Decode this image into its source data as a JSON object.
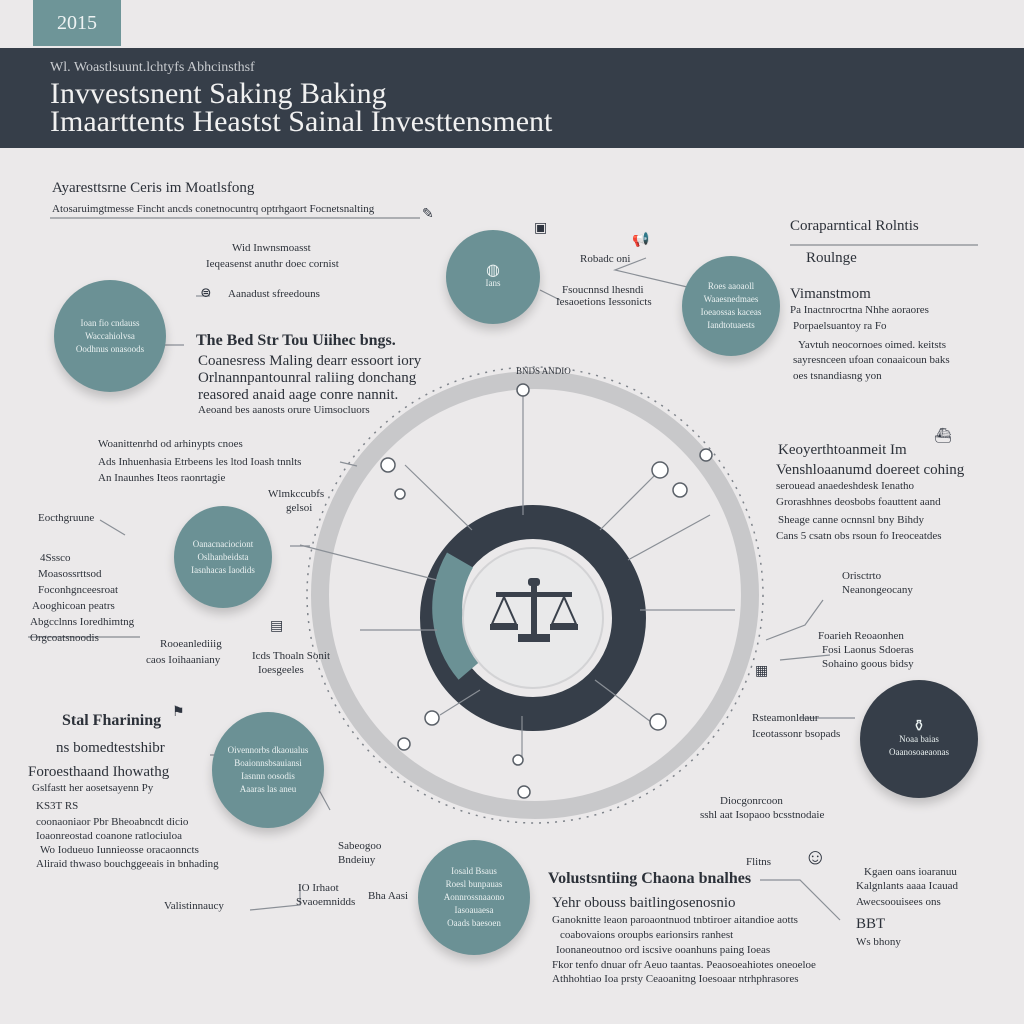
{
  "header": {
    "year": "2015",
    "supertitle": "Wl. Woastlsuunt.lchtyfs Abhcinsthsf",
    "title_line1": "Invvestsnent Saking Baking",
    "title_line2": "Imaarttents Heastst Sainal Investtensment"
  },
  "top_left": {
    "heading": "Ayaresttsrne Ceris im Moatlsfong",
    "subtitle": "Atosaruimgtmesse Fincht ancds conetnocuntrq optrhgaort Focnetsnalting"
  },
  "labels": {
    "mid_top_a": "Wid Inwnsmoasst",
    "mid_top_b": "Ieqeasenst anuthr doec cornist",
    "left_bub_label": "Aanadust sfreedouns",
    "best_heading": "The Bed Str Tou Uiihec bngs.",
    "best_1": "Coanesress Maling dearr essoort iory",
    "best_2": "Orlnannpantounral raliing donchang",
    "best_3": "reasored anaid aage conre nannit.",
    "best_4": "Aeoand bes aanosts orure Uimsocluors",
    "top_bub2_label": "Robadc oni",
    "top_bub2_sub_a": "Fsoucnnsd lhesndi",
    "top_bub2_sub_b": "Iesaoetions Iessonicts",
    "ring_top": "BNDS ANDIO",
    "left_mid_1": "Woanittenrhd od arhinypts cnoes",
    "left_mid_2": "Ads Inhuenhasia Etrbeens les ltod Ioash tnnlts",
    "left_mid_3": "An Inaunhes Iteos raonrtagie",
    "left_sm_a": "Wlmkccubfs",
    "left_sm_b": "gelsoi",
    "left_head3": "Eocthgruune",
    "left_3_1": "4Sssco",
    "left_3_2": "Moasossrttsod",
    "left_3_3": "Foconhgnceesroat",
    "left_3_4": "Aooghicoan peatrs",
    "left_3_5": "Abgcclnns Ioredhimtng",
    "left_3_6": "Orgcoatsnoodis",
    "left_low_a": "Rooeanlediiig",
    "left_low_b": "caos Ioihaaniany",
    "mid_low_a": "Icds Thoaln Sonit",
    "mid_low_b": "Ioesgeeles",
    "right_head": "Coraparntical Rolntis",
    "right_sub": "Roulnge",
    "right_1": "Vimanstmom",
    "right_2": "Pa Inactnrocrtna Nhhe aoraores",
    "right_3": "Porpaelsuantoy ra Fo",
    "right_4": "Yavtuh neocornoes oimed. keitsts",
    "right_5": "sayresnceen ufoan conaaicoun baks",
    "right_6": "oes tsnandiasng yon",
    "right_mid_head": "Keoyerthtoanmeit Im",
    "right_mid_1": "Venshloaanumd doereet cohing",
    "right_mid_2": "serouead anaedeshdesk Ienatho",
    "right_mid_3": "Grorashhnes deosbobs foauttent aand",
    "right_mid_4": "Sheage canne ocnnsnl bny Bihdy",
    "right_mid_5": "Cans 5 csatn obs rsoun fo Ireoceatdes",
    "right_sm_a": "Orisctrto",
    "right_sm_b": "Neanongeocany",
    "right_sm2_a": "Foarieh Reoaonhen",
    "right_sm2_b": "Fosi Laonus Sdoeras",
    "right_sm2_c": "Sohaino goous bidsy",
    "right_low_a": "Rsteamonldaur",
    "right_low_b": "Iceotassonr bsopads",
    "low_mid_a": "Diocgonrcoon",
    "low_mid_b": "sshl aat Isopaoo bcsstnodaie",
    "bottom_left_head": "Stal Fharining",
    "bottom_left_sub": "ns bomedtestshibr",
    "bottom_left_h2": "Foroesthaand Ihowathg",
    "bottom_left_1": "Gslfastt her aosetsayenn Py",
    "bottom_left_2": "KS3T RS",
    "bottom_left_3": "coonaoniaor Pbr Bheoabncdt dicio",
    "bottom_left_4": "Ioaonreostad coanone ratlociuloa",
    "bottom_left_5": "Wo Iodueuo Iunnieosse oracaonncts",
    "bottom_left_6": "Aliraid thwaso bouchggeeais in bnhading",
    "bottom_left_tail": "Valistinnaucy",
    "bottom_c1": "Sabeogoo",
    "bottom_c2": "Bndeiuy",
    "bottom_c3": "IO Irhaot",
    "bottom_c4": "Svaoemnidds",
    "bottom_c5": "Bha Aasi",
    "bottom_heading": "Volustsntiing Chaona bnalhes",
    "bottom_sub": "Yehr obouss baitlingosenosnio",
    "bottom_1": "Ganoknitte leaon paroaontnuod tnbtiroer aitandioe aotts",
    "bottom_2": "coabovaions oroupbs earionsirs ranhest",
    "bottom_3": "Ioonaneoutnoo ord iscsive ooanhuns paing Ioeas",
    "bottom_4": "Fkor tenfo dnuar ofr Aeuo taantas. Peaosoeahiotes oneoeloe",
    "bottom_5": "Athhohtiao Ioa prsty Ceaoanitng Ioesoaar ntrhphrasores",
    "bottom_right_1": "Kgaen oans ioaranuu",
    "bottom_right_2": "Kalgnlants aaaa Icauad",
    "bottom_right_3": "Awecsoouisees ons",
    "bottom_right_4": "BBT",
    "bottom_right_5": "Ws bhony",
    "bottom_right_pre": "Flitns"
  },
  "bubbles": {
    "left_top_1": "Ioan fio cndauss",
    "left_top_2": "Waccahiolvsa",
    "left_top_3": "Oodhnus onasoods",
    "top_center_1": "Ians",
    "right_top_1": "Roes aaoaoll",
    "right_top_2": "Waaesnedmaes",
    "right_top_3": "Ioeaossas kaceas",
    "right_top_4": "Iandtotuaests",
    "left_mid_1": "Oanacnaciociont",
    "left_mid_2": "Oslhanbeidsta",
    "left_mid_3": "Iasnhacas Iaodids",
    "left_low_1": "Oivennorbs dkaoualus",
    "left_low_2": "Boaionnsbsauiansi",
    "left_low_3": "Iasnnn oosodis",
    "left_low_4": "Aaaras las aneu",
    "bottom_center_1": "Iosald Bsaus",
    "bottom_center_2": "Roesl bunpauas",
    "bottom_center_3": "Aonnrossnaaono",
    "bottom_center_4": "Iasoauaesa",
    "bottom_center_5": "Oaads baesoen",
    "right_dark_1": "Noaa baias",
    "right_dark_2": "Oaanosoaeaonas"
  },
  "colors": {
    "header_bg": "#363e49",
    "accent_teal": "#6b9195",
    "background": "#ebe9ea"
  },
  "icons": {
    "center": "balance-scale-icon"
  }
}
